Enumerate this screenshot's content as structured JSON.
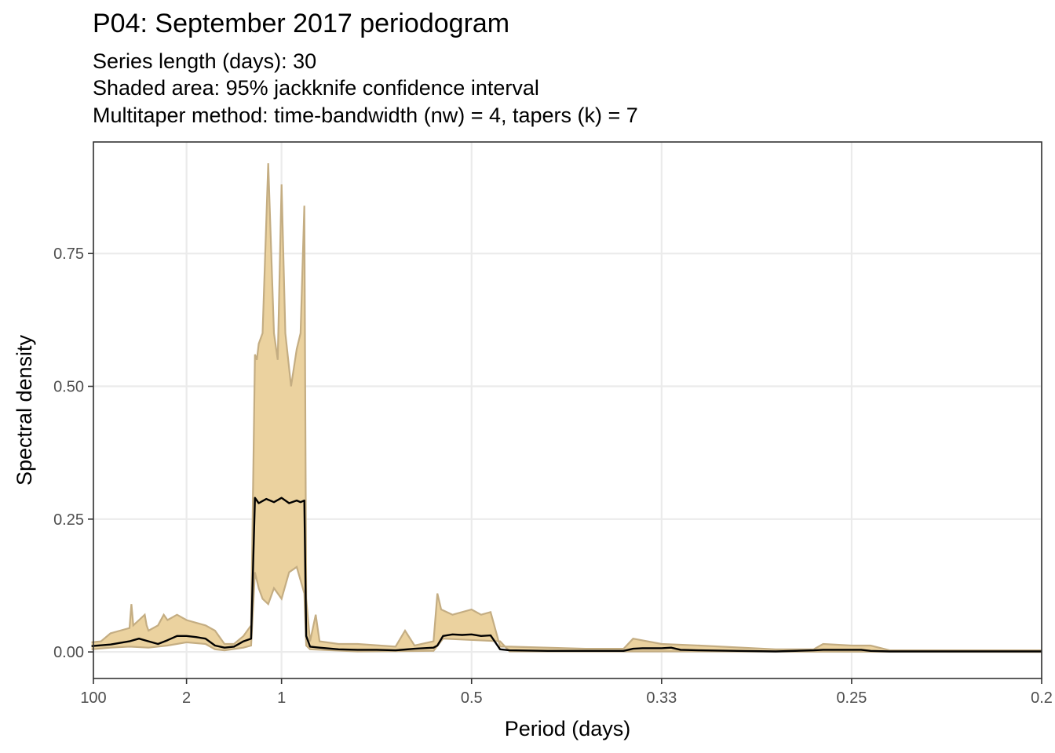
{
  "chart_data": {
    "type": "area",
    "title": "P04: September 2017 periodogram",
    "subtitle_lines": [
      "Series length (days): 30",
      "Shaded area: 95% jackknife confidence interval",
      "Multitaper method: time-bandwidth (nw) = 4, tapers (k) = 7"
    ],
    "xlabel": "Period (days)",
    "ylabel": "Spectral density",
    "x_axis": {
      "quantity": "frequency (cycles/day), labelled as period",
      "range": [
        0.01,
        5.0
      ],
      "ticks": [
        {
          "value": 0.01,
          "label": "100"
        },
        {
          "value": 0.5,
          "label": "2"
        },
        {
          "value": 1.0,
          "label": "1"
        },
        {
          "value": 2.0,
          "label": "0.5"
        },
        {
          "value": 3.0,
          "label": "0.33"
        },
        {
          "value": 4.0,
          "label": "0.25"
        },
        {
          "value": 5.0,
          "label": "0.2"
        }
      ]
    },
    "ylim": [
      -0.05,
      0.96
    ],
    "y_ticks": [
      {
        "value": 0.0,
        "label": "0.00"
      },
      {
        "value": 0.25,
        "label": "0.25"
      },
      {
        "value": 0.5,
        "label": "0.50"
      },
      {
        "value": 0.75,
        "label": "0.75"
      }
    ],
    "grid": true,
    "colors": {
      "band_fill": "#ebd29f",
      "band_edge": "#c4ad82",
      "line": "#000000",
      "grid": "#ebebeb"
    },
    "series": [
      {
        "role": "spectrum",
        "x": [
          0.0,
          0.1,
          0.2,
          0.22,
          0.25,
          0.3,
          0.35,
          0.4,
          0.45,
          0.5,
          0.55,
          0.6,
          0.65,
          0.7,
          0.75,
          0.8,
          0.84,
          0.86,
          0.88,
          0.92,
          0.96,
          1.0,
          1.04,
          1.08,
          1.1,
          1.12,
          1.13,
          1.15,
          1.2,
          1.3,
          1.4,
          1.5,
          1.6,
          1.7,
          1.8,
          1.82,
          1.85,
          1.9,
          1.95,
          2.0,
          2.05,
          2.1,
          2.15,
          2.2,
          2.4,
          2.6,
          2.8,
          2.85,
          2.9,
          3.0,
          3.05,
          3.1,
          3.2,
          3.4,
          3.6,
          3.8,
          3.85,
          3.9,
          4.0,
          4.05,
          4.1,
          4.2,
          4.4,
          4.6,
          4.8,
          5.0
        ],
        "y": [
          0.011,
          0.014,
          0.02,
          0.022,
          0.025,
          0.02,
          0.015,
          0.022,
          0.03,
          0.03,
          0.028,
          0.025,
          0.012,
          0.008,
          0.01,
          0.02,
          0.025,
          0.29,
          0.28,
          0.288,
          0.282,
          0.29,
          0.28,
          0.285,
          0.282,
          0.285,
          0.03,
          0.01,
          0.008,
          0.005,
          0.004,
          0.004,
          0.003,
          0.006,
          0.008,
          0.012,
          0.03,
          0.033,
          0.032,
          0.033,
          0.03,
          0.031,
          0.005,
          0.003,
          0.002,
          0.002,
          0.002,
          0.006,
          0.007,
          0.007,
          0.008,
          0.004,
          0.003,
          0.002,
          0.001,
          0.003,
          0.004,
          0.004,
          0.004,
          0.004,
          0.002,
          0.001,
          0.001,
          0.001,
          0.001,
          0.001
        ]
      },
      {
        "role": "ci_upper",
        "x": [
          0.0,
          0.05,
          0.1,
          0.15,
          0.2,
          0.21,
          0.22,
          0.25,
          0.28,
          0.29,
          0.3,
          0.35,
          0.38,
          0.4,
          0.45,
          0.5,
          0.55,
          0.6,
          0.65,
          0.7,
          0.75,
          0.8,
          0.84,
          0.86,
          0.87,
          0.88,
          0.9,
          0.93,
          0.96,
          0.98,
          1.0,
          1.02,
          1.05,
          1.08,
          1.1,
          1.12,
          1.13,
          1.15,
          1.18,
          1.2,
          1.3,
          1.4,
          1.6,
          1.65,
          1.7,
          1.8,
          1.82,
          1.84,
          1.9,
          2.0,
          2.05,
          2.1,
          2.15,
          2.2,
          2.6,
          2.8,
          2.85,
          3.0,
          3.2,
          3.6,
          3.8,
          3.85,
          4.0,
          4.1,
          4.2,
          4.4,
          4.8,
          5.0
        ],
        "y": [
          0.018,
          0.02,
          0.035,
          0.04,
          0.045,
          0.09,
          0.05,
          0.06,
          0.07,
          0.05,
          0.04,
          0.05,
          0.07,
          0.06,
          0.07,
          0.06,
          0.055,
          0.05,
          0.04,
          0.015,
          0.015,
          0.03,
          0.05,
          0.56,
          0.55,
          0.58,
          0.6,
          0.92,
          0.6,
          0.55,
          0.88,
          0.6,
          0.5,
          0.57,
          0.6,
          0.84,
          0.1,
          0.02,
          0.07,
          0.02,
          0.015,
          0.015,
          0.01,
          0.04,
          0.012,
          0.02,
          0.11,
          0.08,
          0.07,
          0.08,
          0.07,
          0.075,
          0.01,
          0.01,
          0.006,
          0.006,
          0.025,
          0.015,
          0.012,
          0.005,
          0.005,
          0.015,
          0.012,
          0.012,
          0.003,
          0.003,
          0.003,
          0.003
        ]
      },
      {
        "role": "ci_lower",
        "x": [
          0.0,
          0.1,
          0.2,
          0.3,
          0.4,
          0.5,
          0.6,
          0.65,
          0.7,
          0.8,
          0.84,
          0.86,
          0.88,
          0.9,
          0.93,
          0.96,
          1.0,
          1.04,
          1.08,
          1.12,
          1.13,
          1.15,
          1.4,
          1.8,
          1.85,
          2.15,
          2.2,
          3.0,
          5.0
        ],
        "y": [
          0.005,
          0.008,
          0.01,
          0.008,
          0.012,
          0.018,
          0.015,
          0.005,
          0.003,
          0.008,
          0.012,
          0.15,
          0.12,
          0.1,
          0.09,
          0.12,
          0.1,
          0.15,
          0.16,
          0.11,
          0.012,
          0.005,
          0.001,
          0.002,
          0.025,
          0.02,
          0.001,
          0.001,
          0.0
        ]
      }
    ]
  }
}
